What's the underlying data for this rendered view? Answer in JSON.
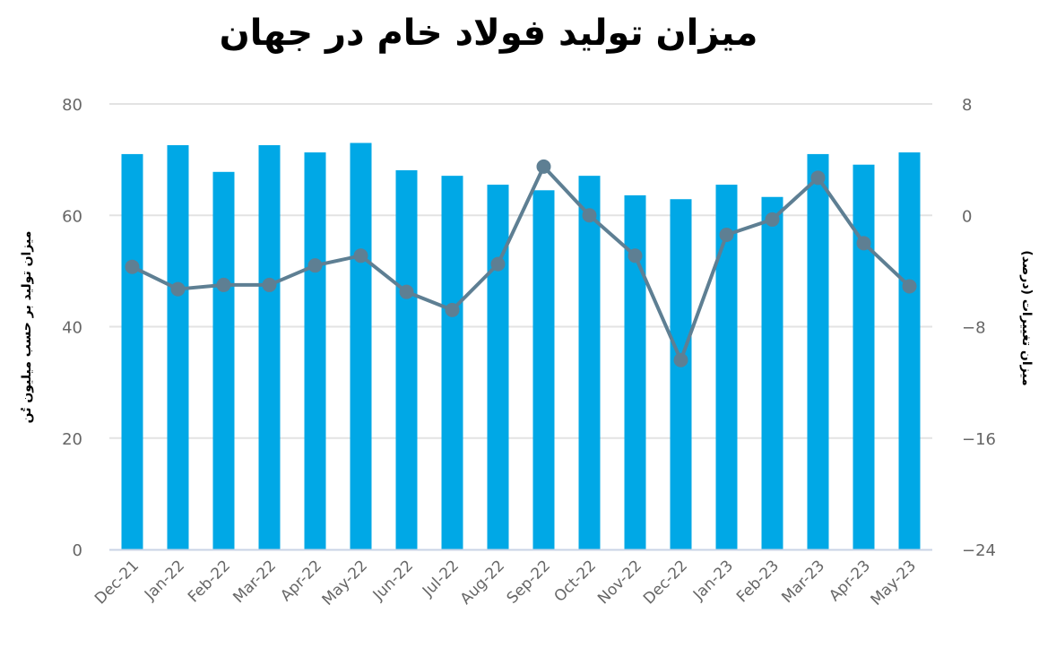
{
  "chart_data": {
    "type": "bar+line",
    "title": "میزان تولید فولاد خام در جهان",
    "categories": [
      "Dec-21",
      "Jan-22",
      "Feb-22",
      "Mar-22",
      "Apr-22",
      "May-22",
      "Jun-22",
      "Jul-22",
      "Aug-22",
      "Sep-22",
      "Oct-22",
      "Nov-22",
      "Dec-22",
      "Jan-23",
      "Feb-23",
      "Mar-23",
      "Apr-23",
      "May-23"
    ],
    "series": [
      {
        "name": "تولید (میلیون تن)",
        "type": "bar",
        "axis": "left",
        "color": "#00A8E6",
        "values": [
          71.0,
          72.6,
          67.8,
          72.6,
          71.3,
          73.0,
          68.1,
          67.1,
          65.5,
          64.5,
          67.1,
          63.6,
          62.9,
          65.5,
          63.3,
          71.0,
          69.1,
          71.3
        ]
      },
      {
        "name": "میزان تغییرات (درصد)",
        "type": "line",
        "axis": "right",
        "color": "#5E7F93",
        "values": [
          -3.7,
          -5.3,
          -5.0,
          -5.0,
          -3.6,
          -2.9,
          -5.5,
          -6.8,
          -3.5,
          3.5,
          0.0,
          -2.9,
          -10.4,
          -1.4,
          -0.3,
          2.7,
          -2.0,
          -5.1
        ]
      }
    ],
    "ylabel": "میزان تولید بر حسب میلیون تُن",
    "y2label": "میزان تغییرات (درصد)",
    "xlabel": "",
    "ylim": [
      0,
      80
    ],
    "y2lim": [
      -24,
      8
    ],
    "yticks": [
      "0",
      "20",
      "40",
      "60",
      "80"
    ],
    "y2ticks": [
      "−24",
      "−16",
      "−8",
      "0",
      "8"
    ],
    "grid": true,
    "legend": "none"
  }
}
